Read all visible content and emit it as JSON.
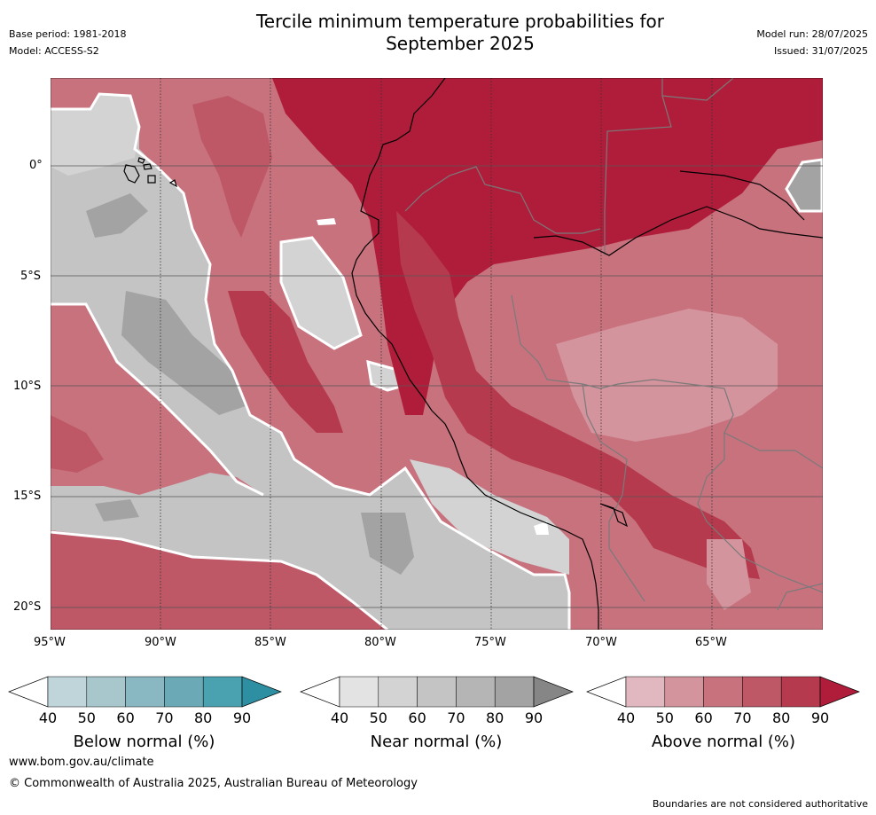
{
  "header": {
    "title_line1": "Tercile minimum temperature probabilities for",
    "title_line2": "September 2025",
    "base_period": "Base period: 1981-2018",
    "model": "Model: ACCESS-S2",
    "model_run": "Model run: 28/07/2025",
    "issued": "Issued: 31/07/2025"
  },
  "map": {
    "lat_ticks": [
      "0°",
      "5°S",
      "10°S",
      "15°S",
      "20°S"
    ],
    "lon_ticks": [
      "95°W",
      "90°W",
      "85°W",
      "80°W",
      "75°W",
      "70°W",
      "65°W"
    ]
  },
  "colorbars": [
    {
      "label": "Below normal (%)",
      "ticks": [
        "40",
        "50",
        "60",
        "70",
        "80",
        "90"
      ],
      "colors": [
        "#ffffff",
        "#bfd5da",
        "#a7c7cd",
        "#8ab8c2",
        "#6aa9b5",
        "#4aa1b0",
        "#2e8fa3"
      ]
    },
    {
      "label": "Near normal (%)",
      "ticks": [
        "40",
        "50",
        "60",
        "70",
        "80",
        "90"
      ],
      "colors": [
        "#ffffff",
        "#e3e3e3",
        "#d3d3d3",
        "#c4c4c4",
        "#b5b5b5",
        "#a3a3a3",
        "#868686"
      ]
    },
    {
      "label": "Above normal (%)",
      "ticks": [
        "40",
        "50",
        "60",
        "70",
        "80",
        "90"
      ],
      "colors": [
        "#ffffff",
        "#e1b8bf",
        "#d4949d",
        "#c8727e",
        "#be5766",
        "#b63a4e",
        "#b01d3a"
      ]
    }
  ],
  "footer": {
    "url": "www.bom.gov.au/climate",
    "copyright": "© Commonwealth of Australia 2025, Australian Bureau of Meteorology",
    "disclaimer": "Boundaries are not considered authoritative"
  }
}
